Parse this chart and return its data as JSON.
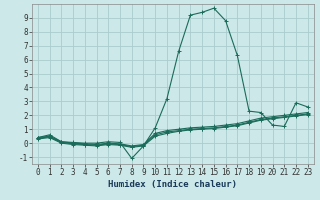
{
  "title": "",
  "xlabel": "Humidex (Indice chaleur)",
  "ylabel": "",
  "background_color": "#cce8e8",
  "grid_color": "#aacccc",
  "line_color": "#1a6b5a",
  "x_data": [
    0,
    1,
    2,
    3,
    4,
    5,
    6,
    7,
    8,
    9,
    10,
    11,
    12,
    13,
    14,
    15,
    16,
    17,
    18,
    19,
    20,
    21,
    22,
    23
  ],
  "series": [
    [
      0.4,
      0.6,
      0.1,
      0.05,
      0.0,
      0.0,
      0.1,
      0.05,
      -1.1,
      -0.2,
      1.1,
      3.2,
      6.6,
      9.2,
      9.4,
      9.7,
      8.8,
      6.3,
      2.3,
      2.2,
      1.3,
      1.2,
      2.9,
      2.6
    ],
    [
      0.4,
      0.5,
      0.1,
      0.0,
      -0.05,
      -0.1,
      0.0,
      -0.05,
      -0.2,
      -0.1,
      0.7,
      0.9,
      1.0,
      1.1,
      1.15,
      1.2,
      1.3,
      1.4,
      1.6,
      1.8,
      1.9,
      2.0,
      2.1,
      2.2
    ],
    [
      0.35,
      0.45,
      0.05,
      -0.05,
      -0.1,
      -0.15,
      -0.05,
      -0.1,
      -0.25,
      -0.15,
      0.6,
      0.8,
      0.9,
      1.0,
      1.05,
      1.1,
      1.2,
      1.3,
      1.5,
      1.7,
      1.8,
      1.9,
      2.0,
      2.1
    ],
    [
      0.3,
      0.4,
      0.0,
      -0.1,
      -0.15,
      -0.2,
      -0.1,
      -0.15,
      -0.3,
      -0.2,
      0.5,
      0.7,
      0.85,
      0.95,
      1.0,
      1.05,
      1.15,
      1.25,
      1.45,
      1.65,
      1.75,
      1.85,
      1.95,
      2.05
    ]
  ],
  "xlim": [
    -0.5,
    23.5
  ],
  "ylim": [
    -1.5,
    10.0
  ],
  "yticks": [
    -1,
    0,
    1,
    2,
    3,
    4,
    5,
    6,
    7,
    8,
    9
  ],
  "xticks": [
    0,
    1,
    2,
    3,
    4,
    5,
    6,
    7,
    8,
    9,
    10,
    11,
    12,
    13,
    14,
    15,
    16,
    17,
    18,
    19,
    20,
    21,
    22,
    23
  ],
  "tick_fontsize": 5.5,
  "xlabel_fontsize": 6.5,
  "line_width": 0.8,
  "marker_size": 2.5
}
